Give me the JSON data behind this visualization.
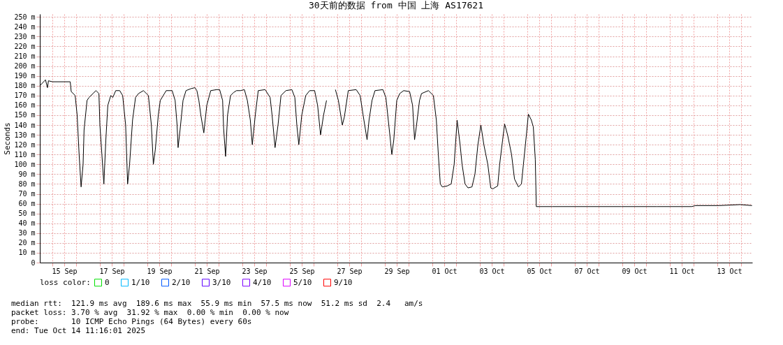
{
  "chart_data": {
    "type": "line",
    "title": "30天前的数据 from 中国 上海 AS17621",
    "ylabel": "Seconds",
    "legend_title": "loss color:",
    "legend": "bottom",
    "grid": true,
    "marker": "none",
    "line_style": "solid",
    "xlim": [
      "2025-09-14T11:16",
      "2025-10-14T11:16"
    ],
    "xticks": [
      {
        "value": "2025-09-15T00:00",
        "label": null
      },
      {
        "value": "2025-09-15T12:00",
        "label": "15 Sep"
      },
      {
        "value": "2025-09-16T00:00",
        "label": null
      },
      {
        "value": "2025-09-17T00:00",
        "label": null
      },
      {
        "value": "2025-09-17T12:00",
        "label": "17 Sep"
      },
      {
        "value": "2025-09-18T00:00",
        "label": null
      },
      {
        "value": "2025-09-19T00:00",
        "label": null
      },
      {
        "value": "2025-09-19T12:00",
        "label": "19 Sep"
      },
      {
        "value": "2025-09-20T00:00",
        "label": null
      },
      {
        "value": "2025-09-21T00:00",
        "label": null
      },
      {
        "value": "2025-09-21T12:00",
        "label": "21 Sep"
      },
      {
        "value": "2025-09-22T00:00",
        "label": null
      },
      {
        "value": "2025-09-23T00:00",
        "label": null
      },
      {
        "value": "2025-09-23T12:00",
        "label": "23 Sep"
      },
      {
        "value": "2025-09-24T00:00",
        "label": null
      },
      {
        "value": "2025-09-25T00:00",
        "label": null
      },
      {
        "value": "2025-09-25T12:00",
        "label": "25 Sep"
      },
      {
        "value": "2025-09-26T00:00",
        "label": null
      },
      {
        "value": "2025-09-27T00:00",
        "label": null
      },
      {
        "value": "2025-09-27T12:00",
        "label": "27 Sep"
      },
      {
        "value": "2025-09-28T00:00",
        "label": null
      },
      {
        "value": "2025-09-29T00:00",
        "label": null
      },
      {
        "value": "2025-09-29T12:00",
        "label": "29 Sep"
      },
      {
        "value": "2025-09-30T00:00",
        "label": null
      },
      {
        "value": "2025-10-01T00:00",
        "label": null
      },
      {
        "value": "2025-10-01T12:00",
        "label": "01 Oct"
      },
      {
        "value": "2025-10-02T00:00",
        "label": null
      },
      {
        "value": "2025-10-03T00:00",
        "label": null
      },
      {
        "value": "2025-10-03T12:00",
        "label": "03 Oct"
      },
      {
        "value": "2025-10-04T00:00",
        "label": null
      },
      {
        "value": "2025-10-05T00:00",
        "label": null
      },
      {
        "value": "2025-10-05T12:00",
        "label": "05 Oct"
      },
      {
        "value": "2025-10-06T00:00",
        "label": null
      },
      {
        "value": "2025-10-07T00:00",
        "label": null
      },
      {
        "value": "2025-10-07T12:00",
        "label": "07 Oct"
      },
      {
        "value": "2025-10-08T00:00",
        "label": null
      },
      {
        "value": "2025-10-09T00:00",
        "label": null
      },
      {
        "value": "2025-10-09T12:00",
        "label": "09 Oct"
      },
      {
        "value": "2025-10-10T00:00",
        "label": null
      },
      {
        "value": "2025-10-11T00:00",
        "label": null
      },
      {
        "value": "2025-10-11T12:00",
        "label": "11 Oct"
      },
      {
        "value": "2025-10-12T00:00",
        "label": null
      },
      {
        "value": "2025-10-13T00:00",
        "label": null
      },
      {
        "value": "2025-10-13T12:00",
        "label": "13 Oct"
      },
      {
        "value": "2025-10-14T00:00",
        "label": null
      }
    ],
    "ylim": [
      0,
      253
    ],
    "yticks": [
      0,
      {
        "value": 10,
        "label": "10 m"
      },
      {
        "value": 20,
        "label": "20 m"
      },
      {
        "value": 30,
        "label": "30 m"
      },
      {
        "value": 40,
        "label": "40 m"
      },
      {
        "value": 50,
        "label": "50 m"
      },
      {
        "value": 60,
        "label": "60 m"
      },
      {
        "value": 70,
        "label": "70 m"
      },
      {
        "value": 80,
        "label": "80 m"
      },
      {
        "value": 90,
        "label": "90 m"
      },
      {
        "value": 100,
        "label": "100 m"
      },
      {
        "value": 110,
        "label": "110 m"
      },
      {
        "value": 120,
        "label": "120 m"
      },
      {
        "value": 130,
        "label": "130 m"
      },
      {
        "value": 140,
        "label": "140 m"
      },
      {
        "value": 150,
        "label": "150 m"
      },
      {
        "value": 160,
        "label": "160 m"
      },
      {
        "value": 170,
        "label": "170 m"
      },
      {
        "value": 180,
        "label": "180 m"
      },
      {
        "value": 190,
        "label": "190 m"
      },
      {
        "value": 200,
        "label": "200 m"
      },
      {
        "value": 210,
        "label": "210 m"
      },
      {
        "value": 220,
        "label": "220 m"
      },
      {
        "value": 230,
        "label": "230 m"
      },
      {
        "value": 240,
        "label": "240 m"
      },
      {
        "value": 250,
        "label": "250 m"
      }
    ],
    "x": [
      "2025-09-14T11:20",
      "2025-09-14T17:00",
      "2025-09-14T19:00",
      "2025-09-14T20:00",
      "2025-09-15T00:00",
      "2025-09-15T18:00",
      "2025-09-15T19:00",
      "2025-09-15T23:00",
      "2025-09-16T01:00",
      "2025-09-16T03:00",
      "2025-09-16T05:00",
      "2025-09-16T07:00",
      "2025-09-16T08:00",
      "2025-09-16T11:00",
      "2025-09-16T13:00",
      "2025-09-16T17:00",
      "2025-09-16T20:00",
      "2025-09-16T23:00",
      "2025-09-17T00:00",
      "2025-09-17T02:00",
      "2025-09-17T04:00",
      "2025-09-17T06:00",
      "2025-09-17T08:00",
      "2025-09-17T11:00",
      "2025-09-17T13:00",
      "2025-09-17T16:00",
      "2025-09-17T20:00",
      "2025-09-17T23:00",
      "2025-09-18T02:00",
      "2025-09-18T04:00",
      "2025-09-18T06:00",
      "2025-09-18T09:00",
      "2025-09-18T12:00",
      "2025-09-18T15:00",
      "2025-09-18T20:00",
      "2025-09-19T01:00",
      "2025-09-19T04:00",
      "2025-09-19T06:00",
      "2025-09-19T08:00",
      "2025-09-19T11:00",
      "2025-09-19T13:00",
      "2025-09-19T16:00",
      "2025-09-19T19:00",
      "2025-09-20T01:00",
      "2025-09-20T04:00",
      "2025-09-20T06:00",
      "2025-09-20T07:00",
      "2025-09-20T09:00",
      "2025-09-20T12:00",
      "2025-09-20T15:00",
      "2025-09-20T20:00",
      "2025-09-21T00:00",
      "2025-09-21T02:00",
      "2025-09-21T04:00",
      "2025-09-21T06:00",
      "2025-09-21T09:00",
      "2025-09-21T12:00",
      "2025-09-21T16:00",
      "2025-09-21T22:00",
      "2025-09-22T01:00",
      "2025-09-22T04:00",
      "2025-09-22T05:00",
      "2025-09-22T07:00",
      "2025-09-22T09:00",
      "2025-09-22T12:00",
      "2025-09-22T15:00",
      "2025-09-22T18:00",
      "2025-09-22T22:00",
      "2025-09-23T02:00",
      "2025-09-23T05:00",
      "2025-09-23T08:00",
      "2025-09-23T10:00",
      "2025-09-23T13:00",
      "2025-09-23T16:00",
      "2025-09-23T23:00",
      "2025-09-24T04:00",
      "2025-09-24T06:00",
      "2025-09-24T09:00",
      "2025-09-24T12:00",
      "2025-09-24T15:00",
      "2025-09-24T20:00",
      "2025-09-25T02:00",
      "2025-09-25T05:00",
      "2025-09-25T07:00",
      "2025-09-25T09:00",
      "2025-09-25T12:00",
      "2025-09-25T16:00",
      "2025-09-25T20:00",
      "2025-09-26T01:00",
      "2025-09-26T04:00",
      "2025-09-26T07:00",
      "2025-09-26T10:00",
      "2025-09-26T13:00",
      "2025-09-26T16:00",
      "2025-09-26T22:00",
      "2025-09-27T01:00",
      "2025-09-27T05:00",
      "2025-09-27T07:00",
      "2025-09-27T11:00",
      "2025-09-27T19:00",
      "2025-09-27T23:00",
      "2025-09-28T02:00",
      "2025-09-28T06:00",
      "2025-09-28T08:00",
      "2025-09-28T11:00",
      "2025-09-28T14:00",
      "2025-09-28T22:00",
      "2025-09-29T01:00",
      "2025-09-29T05:00",
      "2025-09-29T07:00",
      "2025-09-29T09:00",
      "2025-09-29T12:00",
      "2025-09-29T15:00",
      "2025-09-29T19:00",
      "2025-09-30T01:00",
      "2025-09-30T04:00",
      "2025-09-30T06:00",
      "2025-09-30T08:00",
      "2025-09-30T11:00",
      "2025-09-30T13:00",
      "2025-09-30T20:00",
      "2025-10-01T01:00",
      "2025-10-01T04:00",
      "2025-10-01T06:00",
      "2025-10-01T08:00",
      "2025-10-01T10:00",
      "2025-10-01T15:00",
      "2025-10-01T19:00",
      "2025-10-01T22:00",
      "2025-10-02T01:00",
      "2025-10-02T04:00",
      "2025-10-02T06:00",
      "2025-10-02T09:00",
      "2025-10-02T12:00",
      "2025-10-02T16:00",
      "2025-10-02T19:00",
      "2025-10-02T22:00",
      "2025-10-03T01:00",
      "2025-10-03T04:00",
      "2025-10-03T08:00",
      "2025-10-03T11:00",
      "2025-10-03T13:00",
      "2025-10-03T18:00",
      "2025-10-03T20:00",
      "2025-10-03T23:00",
      "2025-10-04T01:00",
      "2025-10-04T04:00",
      "2025-10-04T08:00",
      "2025-10-04T11:00",
      "2025-10-04T15:00",
      "2025-10-04T18:00",
      "2025-10-04T20:00",
      "2025-10-04T23:00",
      "2025-10-05T01:00",
      "2025-10-05T04:00",
      "2025-10-05T06:00",
      "2025-10-05T08:00",
      "2025-10-05T09:00",
      "2025-10-06T01:00",
      "2025-10-07T12:00",
      "2025-10-08T23:00",
      "2025-10-10T11:00",
      "2025-10-11T22:00",
      "2025-10-12T02:00",
      "2025-10-13T02:00",
      "2025-10-13T23:00",
      "2025-10-14T11:00"
    ],
    "series": [
      {
        "color": "#000000",
        "values": [
          180,
          186,
          178,
          185,
          184,
          184,
          174,
          170,
          150,
          110,
          77,
          100,
          135,
          165,
          168,
          172,
          175,
          172,
          140,
          110,
          80,
          125,
          160,
          170,
          168,
          175,
          175,
          170,
          140,
          80,
          100,
          145,
          168,
          172,
          175,
          170,
          140,
          100,
          115,
          150,
          165,
          170,
          175,
          175,
          165,
          140,
          117,
          135,
          165,
          175,
          177,
          178,
          175,
          165,
          150,
          132,
          160,
          175,
          176,
          176,
          165,
          137,
          108,
          150,
          170,
          173,
          175,
          175,
          176,
          165,
          145,
          120,
          150,
          175,
          176,
          168,
          150,
          117,
          140,
          170,
          175,
          176,
          168,
          140,
          120,
          150,
          170,
          175,
          175,
          160,
          130,
          150,
          165,
          null,
          176,
          165,
          140,
          148,
          175,
          176,
          170,
          150,
          125,
          145,
          165,
          175,
          176,
          168,
          130,
          110,
          125,
          165,
          172,
          175,
          174,
          160,
          125,
          140,
          165,
          172,
          175,
          170,
          145,
          110,
          80,
          77,
          78,
          80,
          100,
          145,
          120,
          100,
          80,
          76,
          77,
          90,
          120,
          140,
          120,
          100,
          76,
          75,
          78,
          100,
          125,
          141,
          130,
          110,
          85,
          77,
          80,
          100,
          130,
          151,
          145,
          138,
          105,
          57,
          57,
          57,
          57,
          57,
          57,
          58,
          58,
          59,
          58
        ]
      },
      {
        "name": "0",
        "color": "#00e000",
        "values": [
          null,
          null,
          null,
          null,
          null,
          null,
          null,
          null,
          null,
          null,
          null,
          null,
          null,
          null,
          null,
          null,
          null,
          null,
          null,
          null,
          null,
          null,
          null,
          null,
          null,
          null,
          null,
          null,
          null,
          null,
          null,
          null,
          null,
          null,
          null,
          null,
          null,
          null,
          null,
          null,
          null,
          null,
          null,
          null,
          null,
          null,
          null,
          null,
          null,
          null,
          null,
          null,
          null,
          null,
          null,
          null,
          null,
          null,
          null,
          null,
          null,
          null,
          null,
          null,
          null,
          null,
          null,
          null,
          null,
          null,
          null,
          null,
          null,
          null,
          null,
          null,
          null,
          null,
          null,
          null,
          null,
          null,
          null,
          null,
          null,
          null,
          null,
          null,
          null,
          null,
          null,
          null,
          null,
          null,
          null,
          null,
          null,
          null,
          null,
          null,
          null,
          null,
          null,
          null,
          null,
          null,
          null,
          null,
          null,
          null,
          null,
          null,
          null,
          null,
          null,
          null,
          null,
          null,
          null,
          null,
          null,
          null,
          null,
          null,
          null,
          null,
          null,
          null,
          null,
          null,
          null,
          null,
          null,
          null,
          null,
          null,
          null,
          null,
          null,
          null,
          null,
          null,
          null,
          null,
          null,
          null,
          null,
          null,
          null,
          null,
          null,
          null,
          null,
          null,
          null,
          null,
          null,
          null,
          null,
          null,
          null,
          null,
          null,
          null,
          null,
          null,
          null
        ]
      },
      {
        "name": "1/10",
        "color": "#00b8ff",
        "values": [
          null,
          null,
          null,
          null,
          null,
          null,
          null,
          null,
          null,
          null,
          null,
          null,
          null,
          null,
          null,
          null,
          null,
          null,
          null,
          null,
          null,
          null,
          null,
          null,
          null,
          null,
          null,
          null,
          null,
          null,
          null,
          null,
          null,
          null,
          null,
          null,
          null,
          null,
          null,
          null,
          null,
          null,
          null,
          null,
          null,
          null,
          null,
          null,
          null,
          null,
          null,
          null,
          null,
          null,
          null,
          null,
          null,
          null,
          null,
          null,
          null,
          null,
          null,
          null,
          null,
          null,
          null,
          null,
          null,
          null,
          null,
          null,
          null,
          null,
          null,
          null,
          null,
          null,
          null,
          null,
          null,
          null,
          null,
          null,
          null,
          null,
          null,
          null,
          null,
          null,
          null,
          null,
          null,
          null,
          null,
          null,
          null,
          null,
          null,
          null,
          null,
          null,
          null,
          null,
          null,
          null,
          null,
          null,
          null,
          null,
          null,
          null,
          null,
          null,
          null,
          null,
          null,
          null,
          null,
          null,
          null,
          null,
          null,
          null,
          null,
          null,
          null,
          null,
          null,
          null,
          null,
          null,
          null,
          null,
          null,
          null,
          null,
          null,
          null,
          null,
          null,
          null,
          null,
          null,
          null,
          null,
          null,
          null,
          null,
          null,
          null,
          null,
          null,
          null,
          null,
          null,
          null,
          null,
          null,
          null,
          null,
          null,
          null,
          null,
          null,
          null,
          null
        ]
      },
      {
        "name": "2/10",
        "color": "#0059ff",
        "values": [
          null,
          null,
          null,
          null,
          null,
          null,
          null,
          null,
          null,
          null,
          null,
          null,
          null,
          null,
          null,
          null,
          null,
          null,
          null,
          null,
          null,
          null,
          null,
          null,
          null,
          null,
          null,
          null,
          null,
          null,
          null,
          null,
          null,
          null,
          null,
          null,
          null,
          null,
          null,
          null,
          null,
          null,
          null,
          null,
          null,
          null,
          null,
          null,
          null,
          null,
          null,
          null,
          null,
          null,
          null,
          null,
          null,
          null,
          null,
          null,
          null,
          null,
          null,
          null,
          null,
          null,
          null,
          null,
          null,
          null,
          null,
          null,
          null,
          null,
          null,
          null,
          null,
          null,
          null,
          null,
          null,
          null,
          null,
          null,
          null,
          null,
          null,
          null,
          null,
          null,
          null,
          null,
          null,
          null,
          null,
          null,
          null,
          null,
          null,
          null,
          null,
          null,
          null,
          null,
          null,
          null,
          null,
          null,
          null,
          null,
          null,
          null,
          null,
          null,
          null,
          null,
          null,
          null,
          null,
          null,
          null,
          null,
          null,
          null,
          null,
          null,
          null,
          null,
          null,
          null,
          null,
          null,
          null,
          null,
          null,
          null,
          null,
          null,
          null,
          null,
          null,
          null,
          null,
          null,
          null,
          null,
          null,
          null,
          null,
          null,
          null,
          null,
          null,
          null,
          null,
          null,
          null,
          null,
          null,
          null,
          null,
          null,
          null,
          null,
          null,
          null,
          null
        ]
      },
      {
        "name": "3/10",
        "color": "#5e00ff",
        "values": [
          null,
          null,
          null,
          null,
          null,
          null,
          null,
          null,
          null,
          null,
          null,
          null,
          null,
          null,
          null,
          null,
          null,
          null,
          null,
          null,
          null,
          null,
          null,
          null,
          null,
          null,
          null,
          null,
          null,
          null,
          null,
          null,
          null,
          null,
          null,
          null,
          null,
          null,
          null,
          null,
          null,
          null,
          null,
          null,
          null,
          null,
          null,
          null,
          null,
          null,
          null,
          null,
          null,
          null,
          null,
          null,
          null,
          null,
          null,
          null,
          null,
          null,
          null,
          null,
          null,
          null,
          null,
          null,
          null,
          null,
          null,
          null,
          null,
          null,
          null,
          null,
          null,
          null,
          null,
          null,
          null,
          null,
          null,
          null,
          null,
          null,
          null,
          null,
          null,
          null,
          null,
          null,
          null,
          null,
          null,
          null,
          null,
          null,
          null,
          null,
          null,
          null,
          null,
          null,
          null,
          null,
          null,
          null,
          null,
          null,
          null,
          null,
          null,
          null,
          null,
          null,
          null,
          null,
          null,
          null,
          null,
          null,
          null,
          null,
          null,
          null,
          null,
          null,
          null,
          null,
          null,
          null,
          null,
          null,
          null,
          null,
          null,
          null,
          null,
          null,
          null,
          null,
          null,
          null,
          null,
          null,
          null,
          null,
          null,
          null,
          null,
          null,
          null,
          null,
          null,
          null,
          null,
          null,
          null,
          null,
          null,
          null,
          null,
          null,
          null,
          null,
          null
        ]
      },
      {
        "name": "4/10",
        "color": "#7e00ff",
        "values": [
          null,
          null,
          null,
          null,
          null,
          null,
          null,
          null,
          null,
          null,
          null,
          null,
          null,
          null,
          null,
          null,
          null,
          null,
          null,
          null,
          null,
          null,
          null,
          null,
          null,
          null,
          null,
          null,
          null,
          null,
          null,
          null,
          null,
          null,
          null,
          null,
          null,
          null,
          null,
          null,
          null,
          null,
          null,
          null,
          null,
          null,
          null,
          null,
          null,
          null,
          null,
          null,
          null,
          null,
          null,
          null,
          null,
          null,
          null,
          null,
          null,
          null,
          null,
          null,
          null,
          null,
          null,
          null,
          null,
          null,
          null,
          null,
          null,
          null,
          null,
          null,
          null,
          null,
          null,
          null,
          null,
          null,
          null,
          null,
          null,
          null,
          null,
          null,
          null,
          null,
          null,
          null,
          null,
          null,
          null,
          null,
          null,
          null,
          null,
          null,
          null,
          null,
          null,
          null,
          null,
          null,
          null,
          null,
          null,
          null,
          null,
          null,
          null,
          null,
          null,
          null,
          null,
          null,
          null,
          null,
          null,
          null,
          null,
          null,
          null,
          null,
          null,
          null,
          null,
          null,
          null,
          null,
          null,
          null,
          null,
          null,
          null,
          null,
          null,
          null,
          null,
          null,
          null,
          null,
          null,
          null,
          null,
          null,
          null,
          null,
          null,
          null,
          null,
          null,
          null,
          null,
          null,
          null,
          null,
          null,
          null,
          null,
          null,
          null,
          null,
          null,
          null
        ]
      },
      {
        "name": "5/10",
        "color": "#dd00ff",
        "values": [
          null,
          null,
          null,
          null,
          null,
          null,
          null,
          null,
          null,
          null,
          null,
          null,
          null,
          null,
          null,
          null,
          null,
          null,
          null,
          null,
          null,
          null,
          null,
          null,
          null,
          null,
          null,
          null,
          null,
          null,
          null,
          null,
          null,
          null,
          null,
          null,
          null,
          null,
          null,
          null,
          null,
          null,
          null,
          null,
          null,
          null,
          null,
          null,
          null,
          null,
          null,
          null,
          null,
          null,
          null,
          null,
          null,
          null,
          null,
          null,
          null,
          null,
          null,
          null,
          null,
          null,
          null,
          null,
          null,
          null,
          null,
          null,
          null,
          null,
          null,
          null,
          null,
          null,
          null,
          null,
          null,
          null,
          null,
          null,
          null,
          null,
          null,
          null,
          null,
          null,
          null,
          null,
          null,
          null,
          null,
          null,
          null,
          null,
          null,
          null,
          null,
          null,
          null,
          null,
          null,
          null,
          null,
          null,
          null,
          null,
          null,
          null,
          null,
          null,
          null,
          null,
          null,
          null,
          null,
          null,
          null,
          null,
          null,
          null,
          null,
          null,
          null,
          null,
          null,
          null,
          null,
          null,
          null,
          null,
          null,
          null,
          null,
          null,
          null,
          null,
          null,
          null,
          null,
          null,
          null,
          null,
          null,
          null,
          null,
          null,
          null,
          null,
          null,
          null,
          null,
          null,
          null,
          null,
          null,
          null,
          null,
          null,
          null,
          null,
          null,
          null,
          null
        ]
      },
      {
        "name": "9/10",
        "color": "#ff0000",
        "values": [
          null,
          null,
          null,
          null,
          null,
          null,
          null,
          null,
          null,
          null,
          null,
          null,
          null,
          null,
          null,
          null,
          null,
          null,
          null,
          null,
          null,
          null,
          null,
          null,
          null,
          null,
          null,
          null,
          null,
          null,
          null,
          null,
          null,
          null,
          null,
          null,
          null,
          null,
          null,
          null,
          null,
          null,
          null,
          null,
          null,
          null,
          null,
          null,
          null,
          null,
          null,
          null,
          null,
          null,
          null,
          null,
          null,
          null,
          null,
          null,
          null,
          null,
          null,
          null,
          null,
          null,
          null,
          null,
          null,
          null,
          null,
          null,
          null,
          null,
          null,
          null,
          null,
          null,
          null,
          null,
          null,
          null,
          null,
          null,
          null,
          null,
          null,
          null,
          null,
          null,
          null,
          null,
          null,
          null,
          null,
          null,
          null,
          null,
          null,
          null,
          null,
          null,
          null,
          null,
          null,
          null,
          null,
          null,
          null,
          null,
          null,
          null,
          null,
          null,
          null,
          null,
          null,
          null,
          null,
          null,
          null,
          null,
          null,
          null,
          null,
          null,
          null,
          null,
          null,
          null,
          null,
          null,
          null,
          null,
          null,
          null,
          null,
          null,
          null,
          null,
          null,
          null,
          null,
          null,
          null,
          null,
          null,
          null,
          null,
          null,
          null,
          null,
          null,
          null,
          null,
          null,
          null,
          null,
          null,
          null,
          null,
          null,
          null,
          null,
          null,
          null,
          null
        ]
      }
    ],
    "annotations": [
      "median rtt:  121.9 ms avg  189.6 ms max  55.9 ms min  57.5 ms now  51.2 ms sd  2.4   am/s",
      "packet loss: 3.70 % avg  31.92 % max  0.00 % min  0.00 % now",
      "probe:       10 ICMP Echo Pings (64 Bytes) every 60s",
      "end: Tue Oct 14 11:16:01 2025"
    ]
  }
}
